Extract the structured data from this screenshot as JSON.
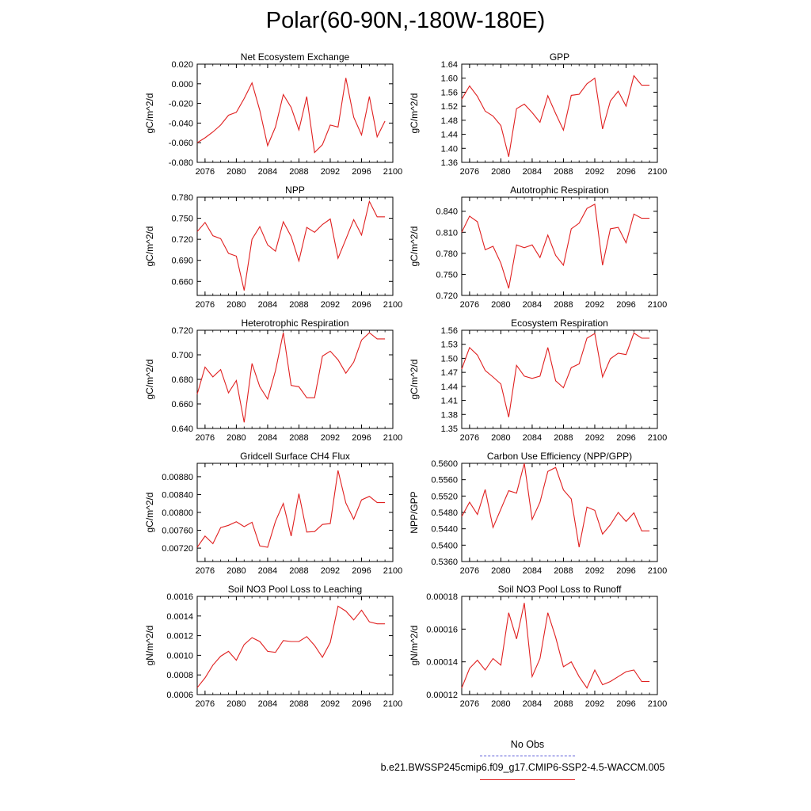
{
  "figure_title": "Polar(60-90N,-180W-180E)",
  "legend": {
    "obs_label": "No Obs",
    "model_label": "b.e21.BWSSP245cmip6.f09_g17.CMIP6-SSP2-4.5-WACCM.005",
    "obs_color": "#5a5ad8",
    "model_color": "#e02020"
  },
  "chart_data": [
    {
      "type": "line",
      "title": "Net Ecosystem Exchange",
      "ylabel": "gC/m^2/d",
      "xlabel": "",
      "xlim": [
        2075,
        2100
      ],
      "ylim": [
        -0.08,
        0.02
      ],
      "xticks": [
        "2076",
        "2080",
        "2084",
        "2088",
        "2092",
        "2096",
        "2100"
      ],
      "yticks": [
        "-0.080",
        "-0.060",
        "-0.040",
        "-0.020",
        "0.000",
        "0.020"
      ],
      "x": [
        2075,
        2076,
        2077,
        2078,
        2079,
        2080,
        2081,
        2082,
        2083,
        2084,
        2085,
        2086,
        2087,
        2088,
        2089,
        2090,
        2091,
        2092,
        2093,
        2094,
        2095,
        2096,
        2097,
        2098,
        2099
      ],
      "values": [
        -0.06,
        -0.055,
        -0.049,
        -0.042,
        -0.032,
        -0.029,
        -0.015,
        0.001,
        -0.027,
        -0.063,
        -0.044,
        -0.011,
        -0.024,
        -0.047,
        -0.013,
        -0.07,
        -0.062,
        -0.042,
        -0.044,
        0.006,
        -0.034,
        -0.052,
        -0.013,
        -0.054,
        -0.038
      ]
    },
    {
      "type": "line",
      "title": "GPP",
      "ylabel": "gC/m^2/d",
      "xlabel": "",
      "xlim": [
        2075,
        2100
      ],
      "ylim": [
        1.36,
        1.64
      ],
      "xticks": [
        "2076",
        "2080",
        "2084",
        "2088",
        "2092",
        "2096",
        "2100"
      ],
      "yticks": [
        "1.36",
        "1.40",
        "1.44",
        "1.48",
        "1.52",
        "1.56",
        "1.60",
        "1.64"
      ],
      "x": [
        2075,
        2076,
        2077,
        2078,
        2079,
        2080,
        2081,
        2082,
        2083,
        2084,
        2085,
        2086,
        2087,
        2088,
        2089,
        2090,
        2091,
        2092,
        2093,
        2094,
        2095,
        2096,
        2097,
        2098,
        2099
      ],
      "values": [
        1.54,
        1.578,
        1.548,
        1.506,
        1.492,
        1.465,
        1.376,
        1.513,
        1.526,
        1.502,
        1.474,
        1.55,
        1.499,
        1.452,
        1.551,
        1.554,
        1.584,
        1.6,
        1.455,
        1.535,
        1.563,
        1.52,
        1.607,
        1.58,
        1.58
      ]
    },
    {
      "type": "line",
      "title": "NPP",
      "ylabel": "gC/m^2/d",
      "xlabel": "",
      "xlim": [
        2075,
        2100
      ],
      "ylim": [
        0.64,
        0.78
      ],
      "xticks": [
        "2076",
        "2080",
        "2084",
        "2088",
        "2092",
        "2096",
        "2100"
      ],
      "yticks": [
        "0.660",
        "0.690",
        "0.720",
        "0.750",
        "0.780"
      ],
      "x": [
        2075,
        2076,
        2077,
        2078,
        2079,
        2080,
        2081,
        2082,
        2083,
        2084,
        2085,
        2086,
        2087,
        2088,
        2089,
        2090,
        2091,
        2092,
        2093,
        2094,
        2095,
        2096,
        2097,
        2098,
        2099
      ],
      "values": [
        0.731,
        0.744,
        0.725,
        0.721,
        0.7,
        0.696,
        0.647,
        0.72,
        0.738,
        0.712,
        0.703,
        0.745,
        0.724,
        0.689,
        0.737,
        0.73,
        0.741,
        0.749,
        0.693,
        0.72,
        0.748,
        0.726,
        0.774,
        0.752,
        0.752
      ]
    },
    {
      "type": "line",
      "title": "Autotrophic Respiration",
      "ylabel": "gC/m^2/d",
      "xlabel": "",
      "xlim": [
        2075,
        2100
      ],
      "ylim": [
        0.72,
        0.86
      ],
      "xticks": [
        "2076",
        "2080",
        "2084",
        "2088",
        "2092",
        "2096",
        "2100"
      ],
      "yticks": [
        "0.720",
        "0.750",
        "0.780",
        "0.810",
        "0.840"
      ],
      "x": [
        2075,
        2076,
        2077,
        2078,
        2079,
        2080,
        2081,
        2082,
        2083,
        2084,
        2085,
        2086,
        2087,
        2088,
        2089,
        2090,
        2091,
        2092,
        2093,
        2094,
        2095,
        2096,
        2097,
        2098,
        2099
      ],
      "values": [
        0.81,
        0.833,
        0.825,
        0.785,
        0.79,
        0.766,
        0.73,
        0.792,
        0.788,
        0.792,
        0.774,
        0.806,
        0.777,
        0.763,
        0.815,
        0.823,
        0.844,
        0.85,
        0.763,
        0.815,
        0.817,
        0.795,
        0.836,
        0.83,
        0.83
      ]
    },
    {
      "type": "line",
      "title": "Heterotrophic Respiration",
      "ylabel": "gC/m^2/d",
      "xlabel": "",
      "xlim": [
        2075,
        2100
      ],
      "ylim": [
        0.64,
        0.72
      ],
      "xticks": [
        "2076",
        "2080",
        "2084",
        "2088",
        "2092",
        "2096",
        "2100"
      ],
      "yticks": [
        "0.640",
        "0.660",
        "0.680",
        "0.700",
        "0.720"
      ],
      "x": [
        2075,
        2076,
        2077,
        2078,
        2079,
        2080,
        2081,
        2082,
        2083,
        2084,
        2085,
        2086,
        2087,
        2088,
        2089,
        2090,
        2091,
        2092,
        2093,
        2094,
        2095,
        2096,
        2097,
        2098,
        2099
      ],
      "values": [
        0.668,
        0.69,
        0.682,
        0.688,
        0.669,
        0.679,
        0.645,
        0.693,
        0.674,
        0.664,
        0.687,
        0.718,
        0.675,
        0.674,
        0.665,
        0.665,
        0.699,
        0.703,
        0.696,
        0.685,
        0.694,
        0.712,
        0.718,
        0.713,
        0.713
      ]
    },
    {
      "type": "line",
      "title": "Ecosystem Respiration",
      "ylabel": "gC/m^2/d",
      "xlabel": "",
      "xlim": [
        2075,
        2100
      ],
      "ylim": [
        1.35,
        1.56
      ],
      "xticks": [
        "2076",
        "2080",
        "2084",
        "2088",
        "2092",
        "2096",
        "2100"
      ],
      "yticks": [
        "1.35",
        "1.38",
        "1.41",
        "1.44",
        "1.47",
        "1.50",
        "1.53",
        "1.56"
      ],
      "x": [
        2075,
        2076,
        2077,
        2078,
        2079,
        2080,
        2081,
        2082,
        2083,
        2084,
        2085,
        2086,
        2087,
        2088,
        2089,
        2090,
        2091,
        2092,
        2093,
        2094,
        2095,
        2096,
        2097,
        2098,
        2099
      ],
      "values": [
        1.477,
        1.523,
        1.507,
        1.474,
        1.46,
        1.445,
        1.374,
        1.485,
        1.462,
        1.457,
        1.462,
        1.523,
        1.452,
        1.437,
        1.48,
        1.488,
        1.543,
        1.553,
        1.46,
        1.499,
        1.511,
        1.508,
        1.554,
        1.543,
        1.543
      ]
    },
    {
      "type": "line",
      "title": "Gridcell Surface CH4 Flux",
      "ylabel": "gC/m^2/d",
      "xlabel": "",
      "xlim": [
        2075,
        2100
      ],
      "ylim": [
        0.0069,
        0.0091
      ],
      "xticks": [
        "2076",
        "2080",
        "2084",
        "2088",
        "2092",
        "2096",
        "2100"
      ],
      "yticks": [
        "0.00720",
        "0.00760",
        "0.00800",
        "0.00840",
        "0.00880"
      ],
      "x": [
        2075,
        2076,
        2077,
        2078,
        2079,
        2080,
        2081,
        2082,
        2083,
        2084,
        2085,
        2086,
        2087,
        2088,
        2089,
        2090,
        2091,
        2092,
        2093,
        2094,
        2095,
        2096,
        2097,
        2098,
        2099
      ],
      "values": [
        0.00722,
        0.00747,
        0.0073,
        0.00766,
        0.00771,
        0.00779,
        0.00768,
        0.00778,
        0.00725,
        0.00722,
        0.0078,
        0.0082,
        0.00747,
        0.00842,
        0.00756,
        0.00757,
        0.00773,
        0.00775,
        0.00894,
        0.00821,
        0.00785,
        0.00828,
        0.00836,
        0.00822,
        0.00822
      ]
    },
    {
      "type": "line",
      "title": "Carbon Use Efficiency (NPP/GPP)",
      "ylabel": "NPP/GPP",
      "xlabel": "",
      "xlim": [
        2075,
        2100
      ],
      "ylim": [
        0.536,
        0.56
      ],
      "xticks": [
        "2076",
        "2080",
        "2084",
        "2088",
        "2092",
        "2096",
        "2100"
      ],
      "yticks": [
        "0.5360",
        "0.5400",
        "0.5440",
        "0.5480",
        "0.5520",
        "0.5560",
        "0.5600"
      ],
      "x": [
        2075,
        2076,
        2077,
        2078,
        2079,
        2080,
        2081,
        2082,
        2083,
        2084,
        2085,
        2086,
        2087,
        2088,
        2089,
        2090,
        2091,
        2092,
        2093,
        2094,
        2095,
        2096,
        2097,
        2098,
        2099
      ],
      "values": [
        0.547,
        0.5505,
        0.5475,
        0.5536,
        0.5443,
        0.5488,
        0.5533,
        0.5527,
        0.56,
        0.5463,
        0.5505,
        0.558,
        0.559,
        0.5535,
        0.5513,
        0.5395,
        0.5493,
        0.5485,
        0.5427,
        0.545,
        0.548,
        0.5458,
        0.5479,
        0.5435,
        0.5435
      ]
    },
    {
      "type": "line",
      "title": "Soil NO3 Pool Loss to Leaching",
      "ylabel": "gN/m^2/d",
      "xlabel": "",
      "xlim": [
        2075,
        2100
      ],
      "ylim": [
        0.0006,
        0.0016
      ],
      "xticks": [
        "2076",
        "2080",
        "2084",
        "2088",
        "2092",
        "2096",
        "2100"
      ],
      "yticks": [
        "0.0006",
        "0.0008",
        "0.0010",
        "0.0012",
        "0.0014",
        "0.0016"
      ],
      "x": [
        2075,
        2076,
        2077,
        2078,
        2079,
        2080,
        2081,
        2082,
        2083,
        2084,
        2085,
        2086,
        2087,
        2088,
        2089,
        2090,
        2091,
        2092,
        2093,
        2094,
        2095,
        2096,
        2097,
        2098,
        2099
      ],
      "values": [
        0.00067,
        0.00077,
        0.0009,
        0.00099,
        0.00104,
        0.00095,
        0.00111,
        0.00118,
        0.00114,
        0.00104,
        0.00103,
        0.00115,
        0.00114,
        0.00114,
        0.00119,
        0.0011,
        0.00098,
        0.00113,
        0.0015,
        0.00145,
        0.00136,
        0.00146,
        0.00134,
        0.00132,
        0.00132
      ]
    },
    {
      "type": "line",
      "title": "Soil NO3 Pool Loss to Runoff",
      "ylabel": "gN/m^2/d",
      "xlabel": "",
      "xlim": [
        2075,
        2100
      ],
      "ylim": [
        0.00012,
        0.00018
      ],
      "xticks": [
        "2076",
        "2080",
        "2084",
        "2088",
        "2092",
        "2096",
        "2100"
      ],
      "yticks": [
        "0.00012",
        "0.00014",
        "0.00016",
        "0.00018"
      ],
      "x": [
        2075,
        2076,
        2077,
        2078,
        2079,
        2080,
        2081,
        2082,
        2083,
        2084,
        2085,
        2086,
        2087,
        2088,
        2089,
        2090,
        2091,
        2092,
        2093,
        2094,
        2095,
        2096,
        2097,
        2098,
        2099
      ],
      "values": [
        0.000124,
        0.000136,
        0.000141,
        0.000135,
        0.000142,
        0.000138,
        0.00017,
        0.000154,
        0.000176,
        0.000131,
        0.000142,
        0.00017,
        0.000155,
        0.000137,
        0.00014,
        0.000131,
        0.000124,
        0.000135,
        0.000126,
        0.000128,
        0.000131,
        0.000134,
        0.000135,
        0.000128,
        0.000128
      ]
    }
  ]
}
